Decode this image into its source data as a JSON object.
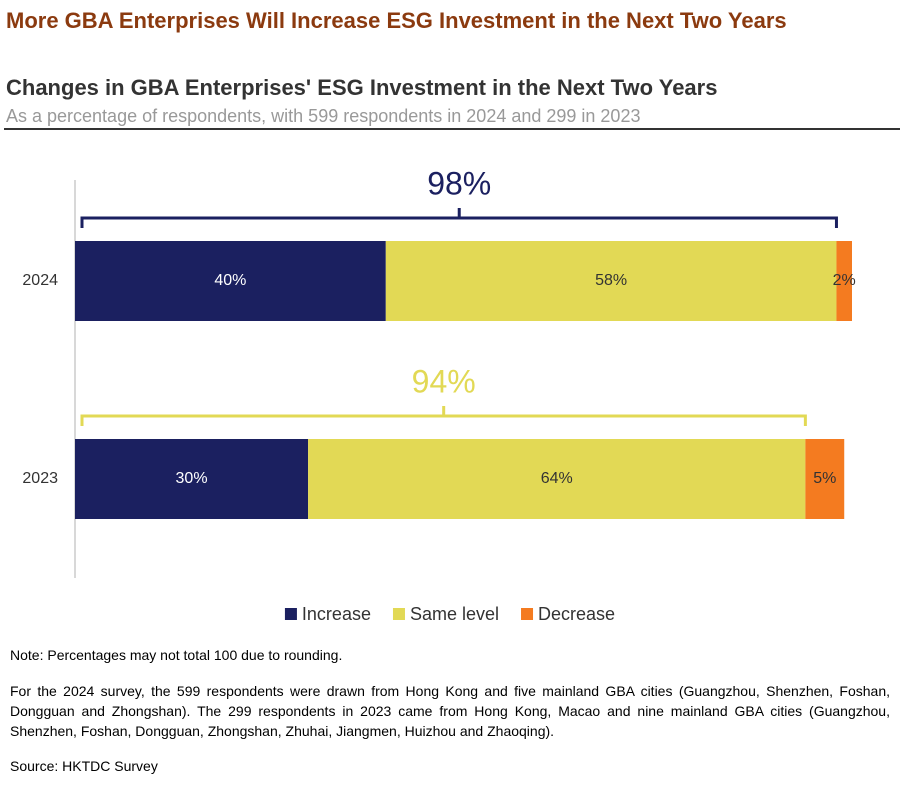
{
  "chart_data": {
    "type": "stacked-bar-horizontal",
    "title": "More GBA Enterprises Will Increase ESG Investment in the Next Two Years",
    "subtitle": "Changes in GBA Enterprises' ESG Investment in the Next Two Years",
    "description": "As a percentage of respondents, with 599 respondents in 2024 and 299 in 2023",
    "categories": [
      "2024",
      "2023"
    ],
    "xlim": [
      0,
      100
    ],
    "series": [
      {
        "name": "Increase",
        "color": "#1b2060",
        "values": [
          40,
          30
        ],
        "value_labels": [
          "40%",
          "30%"
        ]
      },
      {
        "name": "Same level",
        "color": "#e2d955",
        "values": [
          58,
          64
        ],
        "value_labels": [
          "58%",
          "64%"
        ]
      },
      {
        "name": "Decrease",
        "color": "#f47b20",
        "values": [
          2,
          5
        ],
        "value_labels": [
          "2%",
          "5%"
        ]
      }
    ],
    "annotations": [
      {
        "value": 98,
        "label": "98%",
        "color": "#1b2060"
      },
      {
        "value": 94,
        "label": "94%",
        "color": "#e2d955"
      }
    ],
    "legend": "bottom",
    "notes": {
      "note": "Note: Percentages may not total 100 due to rounding.",
      "body": "For the 2024 survey, the 599 respondents were drawn from Hong Kong and five mainland GBA cities (Guangzhou, Shenzhen, Foshan, Dongguan and Zhongshan). The 299 respondents in 2023 came from Hong Kong, Macao and nine mainland GBA cities (Guangzhou, Shenzhen, Foshan, Dongguan, Zhongshan, Zhuhai, Jiangmen, Huizhou and Zhaoqing).",
      "source": "Source: HKTDC Survey"
    }
  }
}
